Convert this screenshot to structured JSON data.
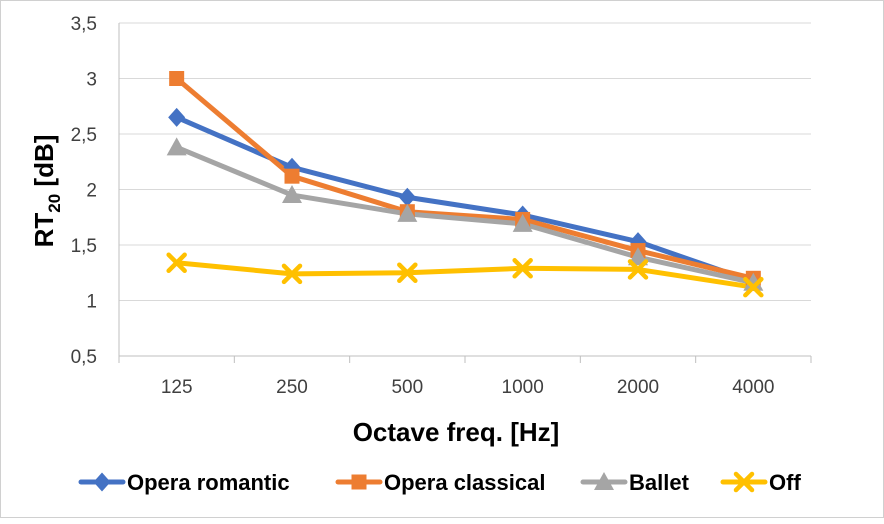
{
  "chart_data": {
    "type": "line",
    "categories": [
      "125",
      "250",
      "500",
      "1000",
      "2000",
      "4000"
    ],
    "xlabel": "Octave freq. [Hz]",
    "ylabel_main": "RT",
    "ylabel_sub": "20",
    "ylabel_unit": " [dB]",
    "ylim": [
      0.5,
      3.5
    ],
    "yticks": [
      0.5,
      1,
      1.5,
      2,
      2.5,
      3,
      3.5
    ],
    "ytick_labels": [
      "0,5",
      "1",
      "1,5",
      "2",
      "2,5",
      "3",
      "3,5"
    ],
    "grid": "horizontal",
    "legend_position": "bottom",
    "series": [
      {
        "name": "Opera romantic",
        "color": "#4472C4",
        "marker": "diamond",
        "values": [
          2.65,
          2.2,
          1.93,
          1.77,
          1.53,
          1.17
        ]
      },
      {
        "name": "Opera classical",
        "color": "#ED7D31",
        "marker": "square",
        "values": [
          3.0,
          2.12,
          1.8,
          1.73,
          1.45,
          1.2
        ]
      },
      {
        "name": "Ballet",
        "color": "#A5A5A5",
        "marker": "triangle",
        "values": [
          2.38,
          1.95,
          1.78,
          1.69,
          1.39,
          1.16
        ]
      },
      {
        "name": "Off",
        "color": "#FFC000",
        "marker": "x",
        "values": [
          1.34,
          1.24,
          1.25,
          1.29,
          1.28,
          1.12
        ]
      }
    ]
  }
}
